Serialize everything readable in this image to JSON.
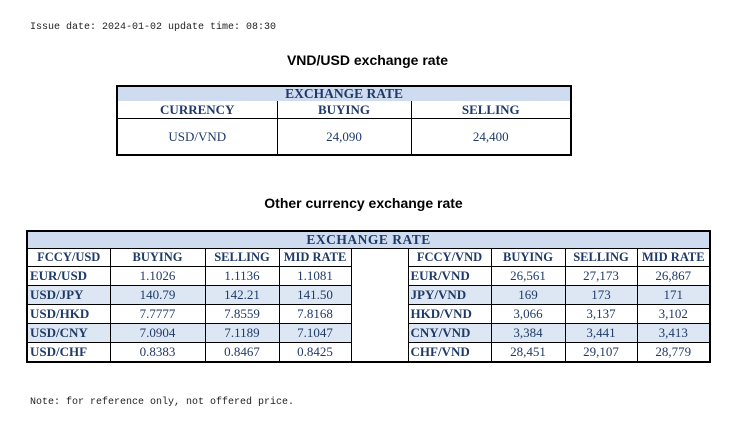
{
  "issue_line": "Issue date: 2024-01-02 update time: 08:30",
  "usd_section": {
    "heading": "VND/USD exchange rate",
    "band": "EXCHANGE RATE",
    "columns": [
      "CURRENCY",
      "BUYING",
      "SELLING"
    ],
    "row": {
      "currency": "USD/VND",
      "buying": "24,090",
      "selling": "24,400"
    }
  },
  "other_section": {
    "heading": "Other currency exchange rate",
    "band": "EXCHANGE  RATE",
    "left_columns": [
      "FCCY/USD",
      "BUYING",
      "SELLING",
      "MID RATE"
    ],
    "right_columns": [
      "FCCY/VND",
      "BUYING",
      "SELLING",
      "MID RATE"
    ],
    "rows": [
      {
        "l_code": "EUR/USD",
        "l_buy": "1.1026",
        "l_sell": "1.1136",
        "l_mid": "1.1081",
        "r_code": "EUR/VND",
        "r_buy": "26,561",
        "r_sell": "27,173",
        "r_mid": "26,867"
      },
      {
        "l_code": "USD/JPY",
        "l_buy": "140.79",
        "l_sell": "142.21",
        "l_mid": "141.50",
        "r_code": "JPY/VND",
        "r_buy": "169",
        "r_sell": "173",
        "r_mid": "171"
      },
      {
        "l_code": "USD/HKD",
        "l_buy": "7.7777",
        "l_sell": "7.8559",
        "l_mid": "7.8168",
        "r_code": "HKD/VND",
        "r_buy": "3,066",
        "r_sell": "3,137",
        "r_mid": "3,102"
      },
      {
        "l_code": "USD/CNY",
        "l_buy": "7.0904",
        "l_sell": "7.1189",
        "l_mid": "7.1047",
        "r_code": "CNY/VND",
        "r_buy": "3,384",
        "r_sell": "3,441",
        "r_mid": "3,413"
      },
      {
        "l_code": "USD/CHF",
        "l_buy": "0.8383",
        "l_sell": "0.8467",
        "l_mid": "0.8425",
        "r_code": "CHF/VND",
        "r_buy": "28,451",
        "r_sell": "29,107",
        "r_mid": "28,779"
      }
    ]
  },
  "note": "Note: for reference only, not offered price.",
  "colors": {
    "header_band": "#cfdcef",
    "alt_row": "#dde6f3",
    "text": "#1f3a68"
  }
}
